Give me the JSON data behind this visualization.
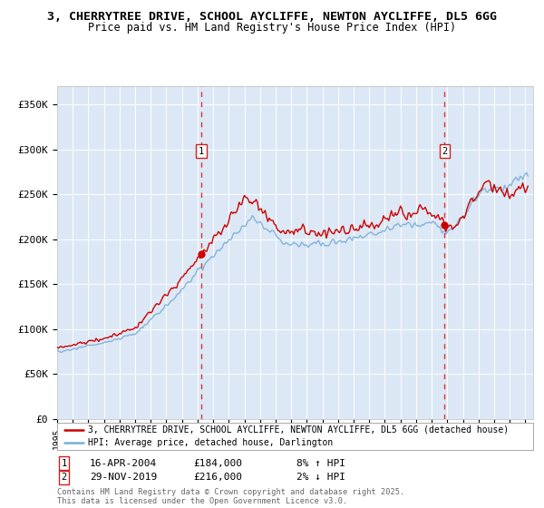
{
  "title_line1": "3, CHERRYTREE DRIVE, SCHOOL AYCLIFFE, NEWTON AYCLIFFE, DL5 6GG",
  "title_line2": "Price paid vs. HM Land Registry's House Price Index (HPI)",
  "ylim": [
    0,
    370000
  ],
  "yticks": [
    0,
    50000,
    100000,
    150000,
    200000,
    250000,
    300000,
    350000
  ],
  "ytick_labels": [
    "£0",
    "£50K",
    "£100K",
    "£150K",
    "£200K",
    "£250K",
    "£300K",
    "£350K"
  ],
  "purchase1_price": 184000,
  "purchase1_label": "1",
  "purchase1_hpi_pct": "8% ↑ HPI",
  "purchase2_price": 216000,
  "purchase2_label": "2",
  "purchase2_hpi_pct": "2% ↓ HPI",
  "red_line_color": "#cc0000",
  "blue_line_color": "#7aaed6",
  "dashed_line_color": "#dd3333",
  "background_fill": "#dce8f5",
  "grid_color": "#ffffff",
  "legend_line1": "3, CHERRYTREE DRIVE, SCHOOL AYCLIFFE, NEWTON AYCLIFFE, DL5 6GG (detached house)",
  "legend_line2": "HPI: Average price, detached house, Darlington",
  "footnote": "Contains HM Land Registry data © Crown copyright and database right 2025.\nThis data is licensed under the Open Government Licence v3.0.",
  "purchase1_display_date": "16-APR-2004",
  "purchase2_display_date": "29-NOV-2019",
  "purchase1_price_str": "£184,000",
  "purchase2_price_str": "£216,000"
}
